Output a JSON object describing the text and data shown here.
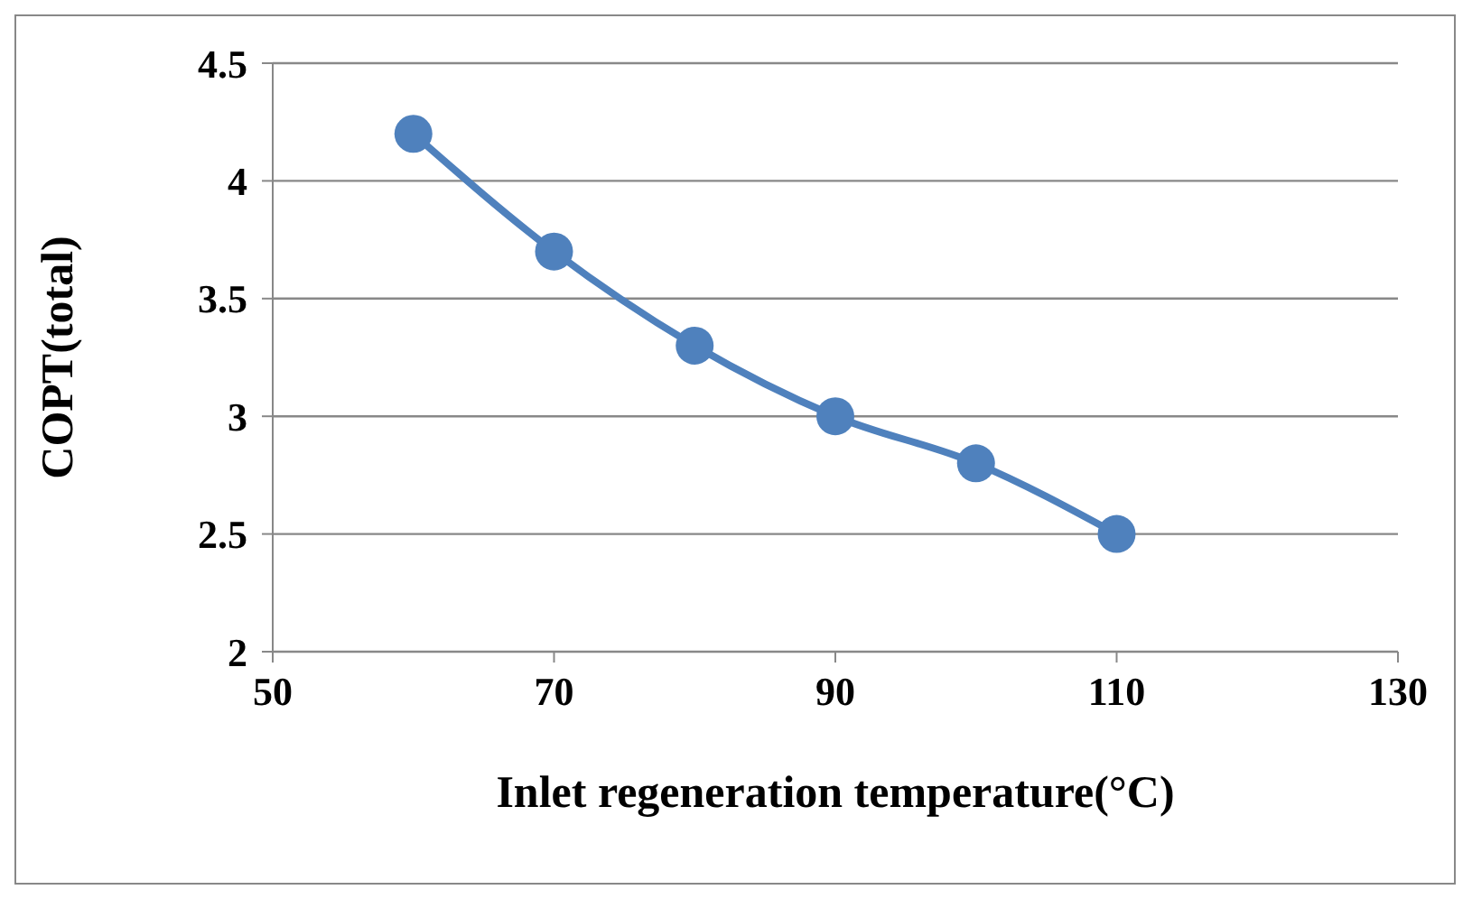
{
  "chart_data": {
    "type": "line",
    "xlabel": "Inlet regeneration temperature(°C)",
    "ylabel": "COPT(total)",
    "x": [
      60,
      70,
      80,
      90,
      100,
      110
    ],
    "series": [
      {
        "color": "#4f81bd",
        "values": [
          4.2,
          3.7,
          3.3,
          3.0,
          2.8,
          2.5
        ]
      }
    ],
    "xlim": [
      50,
      130
    ],
    "xticks": [
      50,
      70,
      90,
      110,
      130
    ],
    "ylim": [
      2,
      4.5
    ],
    "yticks": [
      2,
      2.5,
      3,
      3.5,
      4,
      4.5
    ],
    "grid": "y",
    "marker": "circle",
    "line_style": "solid",
    "legend": false
  }
}
